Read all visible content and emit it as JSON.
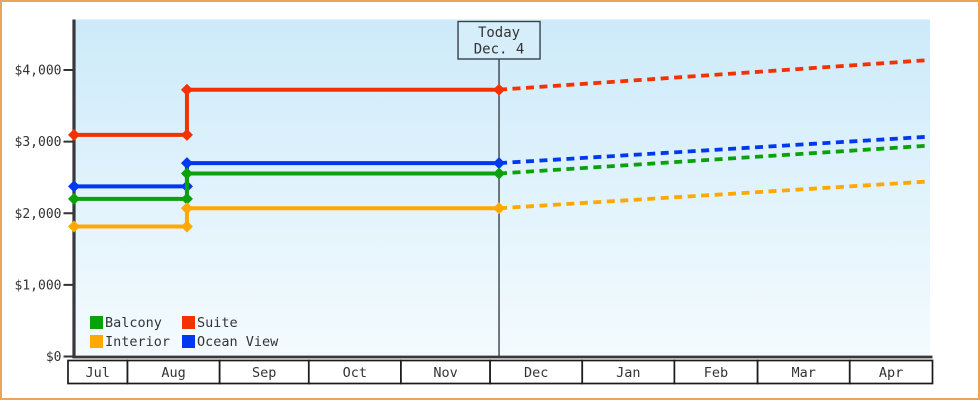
{
  "window": {
    "border_color": "#eaa55c",
    "background": "#ffffff"
  },
  "today_marker": {
    "title": "Today",
    "date": "Dec. 4",
    "day": 156,
    "box_bg": "#d6eefa",
    "line_color": "#3a4149"
  },
  "chart_data": {
    "type": "line",
    "title": "",
    "description": "Cruise cabin price history by category; solid stepped lines show past prices, dashed lines show projected prices after today (Dec. 4).",
    "x_axis": {
      "unit": "days (Jul through Apr season)",
      "domain_days": [
        13,
        301
      ],
      "months": [
        {
          "label": "Jul",
          "start_day": 0,
          "days": 31
        },
        {
          "label": "Aug",
          "start_day": 31,
          "days": 31
        },
        {
          "label": "Sep",
          "start_day": 62,
          "days": 30
        },
        {
          "label": "Oct",
          "start_day": 92,
          "days": 31
        },
        {
          "label": "Nov",
          "start_day": 123,
          "days": 30
        },
        {
          "label": "Dec",
          "start_day": 153,
          "days": 31
        },
        {
          "label": "Jan",
          "start_day": 184,
          "days": 31
        },
        {
          "label": "Feb",
          "start_day": 215,
          "days": 28
        },
        {
          "label": "Mar",
          "start_day": 243,
          "days": 31
        },
        {
          "label": "Apr",
          "start_day": 274,
          "days": 30
        }
      ]
    },
    "y_axis": {
      "min": 0,
      "max": 4000,
      "ticks": [
        {
          "label": "$4,000",
          "value": 4000
        },
        {
          "label": "$3,000",
          "value": 3000
        },
        {
          "label": "$2,000",
          "value": 2000
        },
        {
          "label": "$1,000",
          "value": 1000
        },
        {
          "label": "$0",
          "value": 0
        }
      ]
    },
    "series": [
      {
        "name": "Suite",
        "color": "#f23300",
        "solid": [
          [
            13,
            3095
          ],
          [
            51,
            3095
          ],
          [
            51,
            3725
          ],
          [
            156,
            3725
          ]
        ],
        "projection": [
          [
            156,
            3725
          ],
          [
            301,
            4140
          ]
        ]
      },
      {
        "name": "Ocean View",
        "color": "#0038f0",
        "solid": [
          [
            13,
            2375
          ],
          [
            51,
            2375
          ],
          [
            51,
            2700
          ],
          [
            156,
            2700
          ]
        ],
        "projection": [
          [
            156,
            2700
          ],
          [
            301,
            3070
          ]
        ]
      },
      {
        "name": "Balcony",
        "color": "#0ba10b",
        "solid": [
          [
            13,
            2200
          ],
          [
            51,
            2200
          ],
          [
            51,
            2555
          ],
          [
            156,
            2555
          ]
        ],
        "projection": [
          [
            156,
            2555
          ],
          [
            301,
            2945
          ]
        ]
      },
      {
        "name": "Interior",
        "color": "#ffa800",
        "solid": [
          [
            13,
            1815
          ],
          [
            51,
            1815
          ],
          [
            51,
            2070
          ],
          [
            156,
            2070
          ]
        ],
        "projection": [
          [
            156,
            2070
          ],
          [
            301,
            2445
          ]
        ]
      }
    ],
    "legend": {
      "position": "bottom-left",
      "items": [
        {
          "label": "Balcony",
          "color": "#0ba10b"
        },
        {
          "label": "Suite",
          "color": "#f23300"
        },
        {
          "label": "Interior",
          "color": "#ffa800"
        },
        {
          "label": "Ocean View",
          "color": "#0038f0"
        }
      ]
    },
    "plot_background": {
      "top": "#cdeafa",
      "bottom": "#f4fbfe"
    },
    "axis_color": "#38383c",
    "grid": false
  }
}
